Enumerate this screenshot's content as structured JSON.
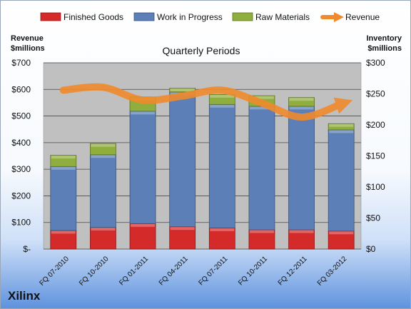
{
  "chart_data": {
    "type": "bar",
    "subtitle": "Quarterly Periods",
    "categories": [
      "FQ 07-2010",
      "FQ 10-2010",
      "FQ 01-2011",
      "FQ 04-2011",
      "FQ 07-2011",
      "FQ 10-2011",
      "FQ 12-2011",
      "FQ 03-2012"
    ],
    "left_axis": {
      "label_line1": "Revenue",
      "label_line2": "$millions",
      "ylim": [
        0,
        700
      ],
      "ticks": [
        0,
        100,
        200,
        300,
        400,
        500,
        600,
        700
      ],
      "tick_labels": [
        "$-",
        "$100",
        "$200",
        "$300",
        "$400",
        "$500",
        "$600",
        "$700"
      ]
    },
    "right_axis": {
      "label_line1": "Inventory",
      "label_line2": "$millions",
      "ylim": [
        0,
        300
      ],
      "ticks": [
        0,
        50,
        100,
        150,
        200,
        250,
        300
      ],
      "tick_labels": [
        "$0",
        "$50",
        "$100",
        "$150",
        "$200",
        "$250",
        "$300"
      ]
    },
    "stacked_series": [
      {
        "name": "Finished Goods",
        "color": "#d42a2a",
        "values": [
          30,
          35,
          41,
          36,
          34,
          31,
          31,
          29
        ]
      },
      {
        "name": "Work in Progress",
        "color": "#5b7fb6",
        "values": [
          103,
          117,
          181,
          217,
          199,
          199,
          199,
          163
        ]
      },
      {
        "name": "Raw Materials",
        "color": "#8fae3e",
        "values": [
          18,
          18,
          23,
          6,
          16,
          17,
          14,
          10
        ]
      }
    ],
    "line_series": {
      "name": "Revenue",
      "color": "#f08a2c",
      "axis": "left",
      "values": [
        597,
        608,
        560,
        575,
        597,
        549,
        496,
        545
      ]
    },
    "grid": true,
    "legend_position": "top"
  },
  "footer": {
    "company": "Xilinx"
  }
}
